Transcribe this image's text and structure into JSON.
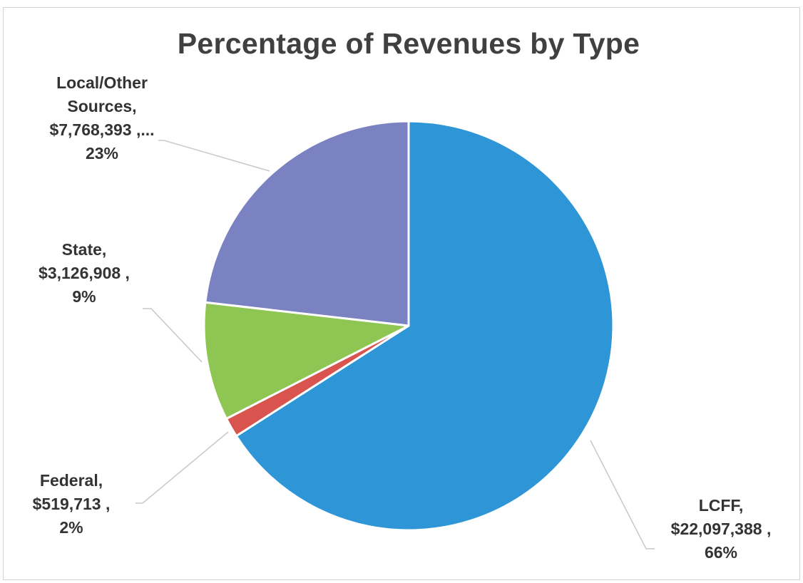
{
  "chart_data": {
    "type": "pie",
    "title": "Percentage of Revenues by Type",
    "slices": [
      {
        "label": "LCFF",
        "amount": "$22,097,388",
        "value": 22097388,
        "percent": "66%",
        "color": "#2e95d6"
      },
      {
        "label": "Federal",
        "amount": "$519,713",
        "value": 519713,
        "percent": "2%",
        "color": "#d9534f"
      },
      {
        "label": "State",
        "amount": "$3,126,908",
        "value": 3126908,
        "percent": "9%",
        "color": "#8fc552"
      },
      {
        "label": "Local/Other Sources",
        "amount": "$7,768,393",
        "value": 7768393,
        "percent": "23%",
        "color": "#7b82c1"
      }
    ],
    "start_angle_deg": 0,
    "direction": "clockwise",
    "legend": "none",
    "data_labels": "outside with leader lines"
  }
}
